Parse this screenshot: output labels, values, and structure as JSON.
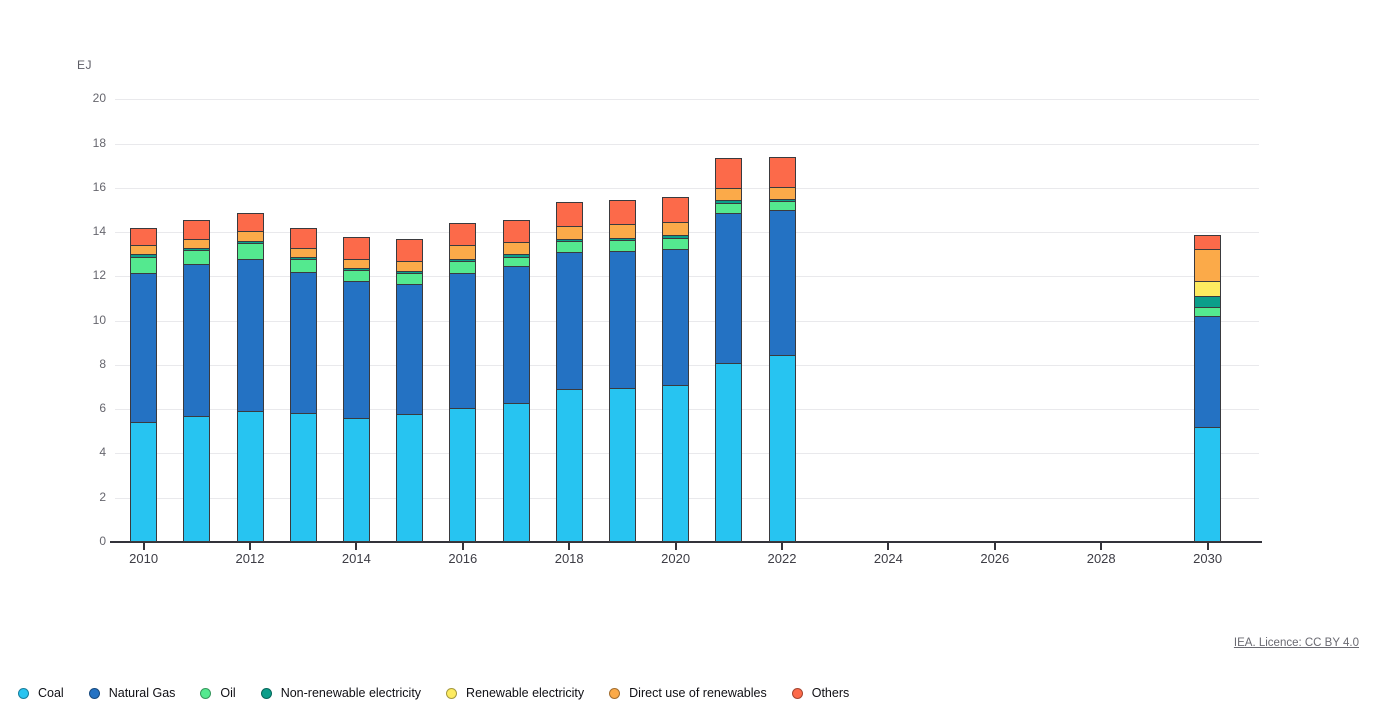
{
  "footer": {
    "license_link": "IEA. Licence: CC BY 4.0"
  },
  "chart_data": {
    "type": "bar",
    "stacked": true,
    "title": "",
    "xlabel": "",
    "ylabel": "EJ",
    "ylim": [
      0,
      20
    ],
    "ytick_step": 2,
    "yticks": [
      0,
      2,
      4,
      6,
      8,
      10,
      12,
      14,
      16,
      18,
      20
    ],
    "xtick_labels": [
      "2010",
      "2012",
      "2014",
      "2016",
      "2018",
      "2020",
      "2022",
      "2024",
      "2026",
      "2028",
      "2030"
    ],
    "categories": [
      2010,
      2011,
      2012,
      2013,
      2014,
      2015,
      2016,
      2017,
      2018,
      2019,
      2020,
      2021,
      2022,
      2030
    ],
    "grid": "horizontal",
    "legend_position": "bottom",
    "series": [
      {
        "name": "Coal",
        "color": "#27c4f1",
        "values": [
          5.4,
          5.7,
          5.9,
          5.85,
          5.6,
          5.8,
          6.05,
          6.3,
          6.9,
          6.95,
          7.1,
          8.1,
          8.45,
          5.2
        ]
      },
      {
        "name": "Natural Gas",
        "color": "#2472c3",
        "values": [
          6.75,
          6.85,
          6.9,
          6.35,
          6.2,
          5.85,
          6.1,
          6.15,
          6.2,
          6.2,
          6.15,
          6.75,
          6.55,
          5.0
        ]
      },
      {
        "name": "Oil",
        "color": "#54e98f",
        "values": [
          0.75,
          0.65,
          0.7,
          0.6,
          0.5,
          0.5,
          0.55,
          0.45,
          0.5,
          0.5,
          0.5,
          0.45,
          0.4,
          0.4
        ]
      },
      {
        "name": "Non-renewable electricity",
        "color": "#0b9e8a",
        "values": [
          0.1,
          0.1,
          0.1,
          0.1,
          0.1,
          0.1,
          0.1,
          0.1,
          0.1,
          0.1,
          0.1,
          0.15,
          0.1,
          0.5
        ]
      },
      {
        "name": "Renewable electricity",
        "color": "#fdeb60",
        "values": [
          0,
          0,
          0,
          0,
          0,
          0,
          0,
          0,
          0,
          0,
          0,
          0,
          0,
          0.7
        ]
      },
      {
        "name": "Direct use of renewables",
        "color": "#fbaa49",
        "values": [
          0.4,
          0.4,
          0.45,
          0.4,
          0.4,
          0.45,
          0.6,
          0.55,
          0.6,
          0.6,
          0.6,
          0.55,
          0.55,
          1.45
        ]
      },
      {
        "name": "Others",
        "color": "#fc6a4a",
        "values": [
          0.8,
          0.85,
          0.8,
          0.9,
          1.0,
          1.0,
          1.0,
          1.0,
          1.05,
          1.1,
          1.15,
          1.35,
          1.35,
          0.6
        ]
      }
    ]
  }
}
